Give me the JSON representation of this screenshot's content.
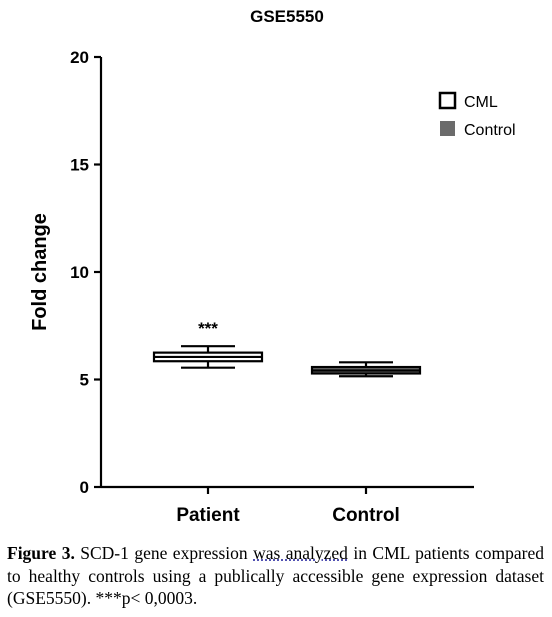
{
  "chart_data": {
    "type": "box",
    "title": "GSE5550",
    "ylabel": "Fold change",
    "xlabel": "",
    "ylim": [
      0,
      20
    ],
    "yticks": [
      0,
      5,
      10,
      15,
      20
    ],
    "grid": false,
    "legend_position": "top-right",
    "categories": [
      "Patient",
      "Control"
    ],
    "series": [
      {
        "name": "CML",
        "category": "Patient",
        "fill": "#ffffff",
        "min": 5.55,
        "q1": 5.85,
        "median": 6.05,
        "q3": 6.25,
        "max": 6.55,
        "annotation": "***"
      },
      {
        "name": "Control",
        "category": "Control",
        "fill": "#6b6b6b",
        "min": 5.15,
        "q1": 5.28,
        "median": 5.42,
        "q3": 5.58,
        "max": 5.8
      }
    ]
  },
  "caption": {
    "label": "Figure 3.",
    "part1": " SCD-1 gene expression ",
    "underlined": "was analyzed",
    "part2": " in CML patients compared to healthy controls using a publically accessible gene expression dataset (GSE5550). ***p< 0,0003."
  },
  "colors": {
    "axis": "#000000",
    "control_fill": "#6b6b6b",
    "underline": "#3a3aa8"
  }
}
